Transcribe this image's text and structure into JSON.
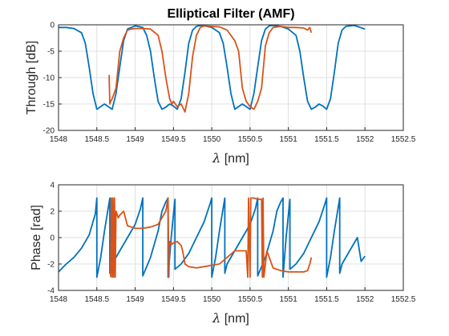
{
  "colors": {
    "model": "#0072BD",
    "measured": "#D95319",
    "grid": "#dfdfdf",
    "axis": "#262626"
  },
  "chart_data": [
    {
      "type": "line",
      "title": "Elliptical Filter (AMF)",
      "xlabel_symbol": "λ",
      "xlabel_unit": " [nm]",
      "ylabel": "Through [dB]",
      "xlim": [
        1548,
        1552.5
      ],
      "ylim": [
        -20,
        0
      ],
      "xticks": [
        "1548",
        "1548.5",
        "1549",
        "1549.5",
        "1550",
        "1550.5",
        "1551",
        "1551.5",
        "1552",
        "1552.5"
      ],
      "yticks": [
        "0",
        "-5",
        "-10",
        "-15",
        "-20"
      ],
      "grid": true,
      "series": [
        {
          "key": "model",
          "color": "#0072BD",
          "x": [
            1548.0,
            1548.1,
            1548.2,
            1548.3,
            1548.35,
            1548.4,
            1548.45,
            1548.5,
            1548.55,
            1548.6,
            1548.65,
            1548.7,
            1548.75,
            1548.8,
            1548.85,
            1548.9,
            1549.0,
            1549.1,
            1549.15,
            1549.2,
            1549.25,
            1549.3,
            1549.35,
            1549.4,
            1549.45,
            1549.5,
            1549.55,
            1549.6,
            1549.65,
            1549.7,
            1549.75,
            1549.8,
            1549.85,
            1549.9,
            1550.0,
            1550.1,
            1550.15,
            1550.2,
            1550.25,
            1550.3,
            1550.35,
            1550.4,
            1550.45,
            1550.5,
            1550.55,
            1550.6,
            1550.65,
            1550.7,
            1550.75,
            1550.8,
            1550.85,
            1550.9,
            1551.0,
            1551.1,
            1551.15,
            1551.2,
            1551.25,
            1551.3,
            1551.35,
            1551.4,
            1551.45,
            1551.5,
            1551.55,
            1551.6,
            1551.65,
            1551.7,
            1551.75,
            1551.8,
            1551.85,
            1551.9,
            1552.0
          ],
          "y": [
            -0.5,
            -0.5,
            -0.7,
            -1.5,
            -3.5,
            -8,
            -13,
            -16,
            -15.5,
            -15,
            -15.5,
            -16,
            -13,
            -8,
            -3,
            -0.8,
            -0.2,
            -0.5,
            -2,
            -5,
            -10,
            -14.5,
            -16,
            -15.6,
            -15,
            -15.4,
            -16,
            -14,
            -9,
            -3.5,
            -1,
            -0.3,
            -0.1,
            -0.2,
            -0.5,
            -1.5,
            -3.5,
            -8,
            -13,
            -16,
            -15.5,
            -15,
            -15.5,
            -16,
            -13,
            -8,
            -3,
            -0.8,
            -0.2,
            -0.1,
            -0.2,
            -0.3,
            -0.8,
            -2,
            -5,
            -10,
            -14.5,
            -16,
            -15.6,
            -15,
            -15.4,
            -16,
            -14,
            -9,
            -3.5,
            -1,
            -0.3,
            -0.2,
            -0.1,
            -0.3,
            -0.8
          ]
        },
        {
          "key": "measured",
          "color": "#D95319",
          "x": [
            1548.66,
            1548.67,
            1548.68,
            1548.7,
            1548.75,
            1548.8,
            1548.85,
            1548.9,
            1548.95,
            1549.0,
            1549.1,
            1549.2,
            1549.3,
            1549.35,
            1549.4,
            1549.45,
            1549.48,
            1549.5,
            1549.55,
            1549.6,
            1549.65,
            1549.7,
            1549.75,
            1549.8,
            1549.85,
            1549.9,
            1550.0,
            1550.1,
            1550.2,
            1550.3,
            1550.35,
            1550.4,
            1550.45,
            1550.5,
            1550.55,
            1550.6,
            1550.65,
            1550.7,
            1550.75,
            1550.8,
            1550.9,
            1551.0,
            1551.1,
            1551.2,
            1551.25,
            1551.28,
            1551.3
          ],
          "y": [
            -9.5,
            -15,
            -14.5,
            -14,
            -12,
            -5,
            -2.5,
            -1,
            -0.8,
            -0.7,
            -0.7,
            -0.8,
            -2,
            -5,
            -10,
            -14,
            -15,
            -14.5,
            -15.5,
            -15,
            -16.5,
            -13,
            -6,
            -2,
            -0.5,
            -0.2,
            -0.3,
            -0.4,
            -1,
            -3,
            -5,
            -12,
            -14.5,
            -15.5,
            -16,
            -14.5,
            -12,
            -4,
            -1.5,
            -0.5,
            -0.3,
            -0.5,
            -0.5,
            -0.6,
            -1,
            -0.5,
            -1.5
          ]
        }
      ]
    },
    {
      "type": "line",
      "title": "",
      "xlabel_symbol": "λ",
      "xlabel_unit": " [nm]",
      "ylabel": "Phase [rad]",
      "xlim": [
        1548,
        1552.5
      ],
      "ylim": [
        -4,
        4
      ],
      "xticks": [
        "1548",
        "1548.5",
        "1549",
        "1549.5",
        "1550",
        "1550.5",
        "1551",
        "1551.5",
        "1552",
        "1552.5"
      ],
      "yticks": [
        "4",
        "2",
        "0",
        "-2",
        "-4"
      ],
      "grid": true,
      "series": [
        {
          "key": "model",
          "color": "#0072BD",
          "x": [
            1548.0,
            1548.1,
            1548.2,
            1548.3,
            1548.4,
            1548.48,
            1548.5,
            1548.5,
            1548.55,
            1548.6,
            1548.67,
            1548.67,
            1548.7,
            1548.8,
            1548.9,
            1549.0,
            1549.07,
            1549.1,
            1549.1,
            1549.2,
            1549.3,
            1549.35,
            1549.4,
            1549.43,
            1549.43,
            1549.47,
            1549.52,
            1549.52,
            1549.6,
            1549.7,
            1549.8,
            1549.9,
            1549.98,
            1550.0,
            1550.0,
            1550.05,
            1550.1,
            1550.17,
            1550.17,
            1550.2,
            1550.3,
            1550.4,
            1550.5,
            1550.57,
            1550.6,
            1550.6,
            1550.7,
            1550.8,
            1550.85,
            1550.9,
            1550.93,
            1550.93,
            1550.97,
            1551.02,
            1551.02,
            1551.1,
            1551.2,
            1551.3,
            1551.4,
            1551.48,
            1551.5,
            1551.5,
            1551.55,
            1551.6,
            1551.67,
            1551.67,
            1551.7,
            1551.8,
            1551.9,
            1551.95,
            1552.0
          ],
          "y": [
            -2.6,
            -2.0,
            -1.5,
            -0.8,
            0.2,
            1.8,
            3.0,
            -3.0,
            -1.5,
            0.5,
            3.0,
            -2.7,
            -2.0,
            -1.0,
            0.0,
            1.0,
            2.2,
            3.0,
            -2.9,
            -1.5,
            0.5,
            2.0,
            2.7,
            3.0,
            -3.0,
            0.0,
            2.9,
            -2.4,
            -2.0,
            -1.2,
            0.0,
            1.2,
            2.6,
            3.0,
            -3.0,
            -1.5,
            0.5,
            3.0,
            -2.7,
            -2.0,
            -1.0,
            0.0,
            1.0,
            2.2,
            3.0,
            -2.9,
            -1.5,
            0.5,
            2.0,
            2.7,
            3.0,
            -3.0,
            0.0,
            2.9,
            -2.4,
            -2.0,
            -1.2,
            0.0,
            1.2,
            2.6,
            3.0,
            -3.0,
            -1.5,
            0.5,
            3.0,
            -2.7,
            -2.0,
            -1.0,
            0.0,
            -1.8,
            -1.4
          ]
        },
        {
          "key": "measured",
          "color": "#D95319",
          "x": [
            1548.68,
            1548.69,
            1548.7,
            1548.71,
            1548.72,
            1548.73,
            1548.74,
            1548.75,
            1548.78,
            1548.8,
            1548.85,
            1548.9,
            1548.95,
            1549.0,
            1549.1,
            1549.2,
            1549.3,
            1549.4,
            1549.43,
            1549.44,
            1549.45,
            1549.46,
            1549.47,
            1549.48,
            1549.5,
            1549.55,
            1549.6,
            1549.62,
            1549.65,
            1549.7,
            1549.8,
            1549.9,
            1550.0,
            1550.1,
            1550.2,
            1550.3,
            1550.4,
            1550.45,
            1550.47,
            1550.48,
            1550.5,
            1550.51,
            1550.52,
            1550.55,
            1550.6,
            1550.65,
            1550.66,
            1550.67,
            1550.68,
            1550.7,
            1550.72,
            1550.75,
            1550.8,
            1550.9,
            1551.0,
            1551.1,
            1551.2,
            1551.25,
            1551.28,
            1551.3
          ],
          "y": [
            -3.0,
            3.0,
            -3.0,
            3.0,
            -3.0,
            3.0,
            -3.0,
            2.0,
            1.5,
            1.7,
            2.0,
            0.9,
            0.8,
            0.7,
            0.7,
            0.8,
            1.0,
            2.0,
            3.0,
            -3.0,
            -0.3,
            -0.5,
            -0.4,
            -0.5,
            -0.4,
            -0.3,
            -0.6,
            -1.0,
            -2.0,
            -2.2,
            -2.3,
            -2.2,
            -2.1,
            -2.0,
            -1.5,
            -1.0,
            -1.0,
            -1.0,
            -3.0,
            3.0,
            -3.0,
            3.0,
            3.0,
            3.0,
            2.9,
            2.9,
            -3.0,
            3.0,
            -3.0,
            -2.0,
            -1.0,
            -1.5,
            -2.3,
            -2.5,
            -2.6,
            -2.6,
            -2.6,
            -2.5,
            -2.0,
            -1.5
          ]
        }
      ]
    }
  ]
}
